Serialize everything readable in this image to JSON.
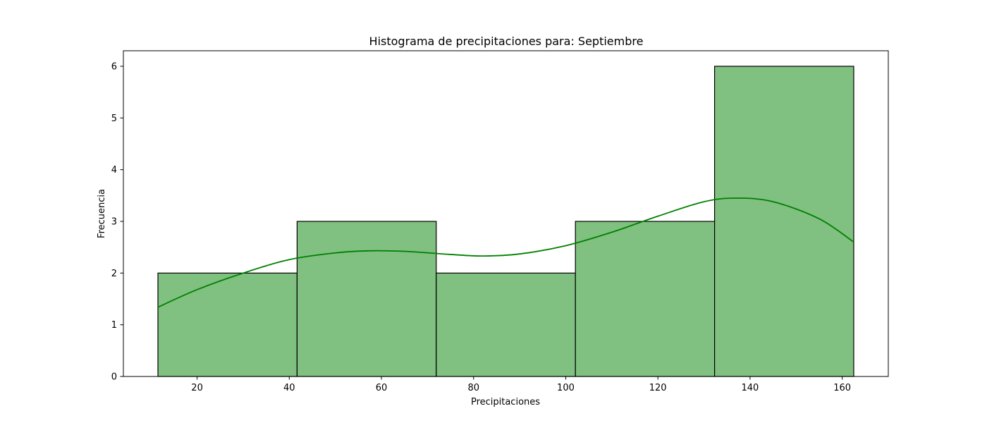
{
  "chart_data": {
    "type": "bar",
    "title": "Histograma de precipitaciones para: Septiembre",
    "xlabel": "Precipitaciones",
    "ylabel": "Frecuencia",
    "xlim": [
      4,
      170
    ],
    "ylim": [
      0,
      6.3
    ],
    "xticks": [
      20,
      40,
      60,
      80,
      100,
      120,
      140,
      160
    ],
    "yticks": [
      0,
      1,
      2,
      3,
      4,
      5,
      6
    ],
    "grid": false,
    "bins": [
      {
        "start": 11.5,
        "end": 41.7,
        "count": 2
      },
      {
        "start": 41.7,
        "end": 71.9,
        "count": 3
      },
      {
        "start": 71.9,
        "end": 102.1,
        "count": 2
      },
      {
        "start": 102.1,
        "end": 132.3,
        "count": 3
      },
      {
        "start": 132.3,
        "end": 162.5,
        "count": 6
      }
    ],
    "kde": {
      "x": [
        11.5,
        20,
        30,
        40,
        50,
        57,
        65,
        75,
        82,
        90,
        100,
        110,
        120,
        130,
        137,
        145,
        155,
        162.5
      ],
      "y": [
        1.34,
        1.68,
        2.0,
        2.26,
        2.39,
        2.43,
        2.42,
        2.36,
        2.33,
        2.37,
        2.53,
        2.79,
        3.1,
        3.38,
        3.45,
        3.38,
        3.05,
        2.6
      ]
    },
    "colors": {
      "bar_fill": "#80c080",
      "bar_edge": "#000000",
      "kde_line": "#008000"
    }
  }
}
